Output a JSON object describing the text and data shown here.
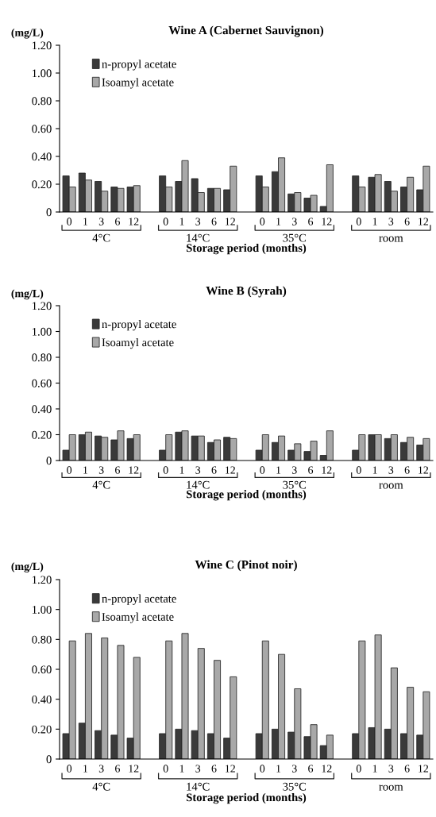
{
  "chart_data": [
    {
      "type": "bar",
      "title": "Wine A (Cabernet Sauvignon)",
      "ylabel": "(mg/L)",
      "xlabel": "Storage period (months)",
      "categories": [
        "0",
        "1",
        "3",
        "6",
        "12",
        null,
        "0",
        "1",
        "3",
        "6",
        "12",
        null,
        "0",
        "1",
        "3",
        "6",
        "12",
        null,
        "0",
        "1",
        "3",
        "6",
        "12"
      ],
      "series": [
        {
          "name": "n-propyl acetate",
          "color": "#3a3a3a",
          "values": [
            0.26,
            0.28,
            0.22,
            0.18,
            0.18,
            null,
            0.26,
            0.22,
            0.24,
            0.17,
            0.16,
            null,
            0.26,
            0.29,
            0.13,
            0.1,
            0.04,
            null,
            0.26,
            0.25,
            0.22,
            0.18,
            0.16
          ]
        },
        {
          "name": "Isoamyl acetate",
          "color": "#a8a8a8",
          "values": [
            0.18,
            0.23,
            0.15,
            0.17,
            0.19,
            null,
            0.18,
            0.37,
            0.14,
            0.17,
            0.33,
            null,
            0.18,
            0.39,
            0.14,
            0.12,
            0.34,
            null,
            0.18,
            0.27,
            0.15,
            0.25,
            0.33
          ]
        }
      ],
      "annotations": [
        "4°C",
        "14°C",
        "35°C",
        "room"
      ],
      "ylim": [
        0,
        1.2
      ],
      "yticks": [
        0,
        {
          "value": 0.2,
          "label": "0.20"
        },
        {
          "value": 0.4,
          "label": "0.40"
        },
        {
          "value": 0.6,
          "label": "0.60"
        },
        {
          "value": 0.8,
          "label": "0.80"
        },
        {
          "value": 1.0,
          "label": "1.00"
        },
        {
          "value": 1.2,
          "label": "1.20"
        }
      ],
      "legend": "top left",
      "grid": false
    },
    {
      "type": "bar",
      "title": "Wine B (Syrah)",
      "ylabel": "(mg/L)",
      "xlabel": "Storage period (months)",
      "categories": [
        "0",
        "1",
        "3",
        "6",
        "12",
        null,
        "0",
        "1",
        "3",
        "6",
        "12",
        null,
        "0",
        "1",
        "3",
        "6",
        "12",
        null,
        "0",
        "1",
        "3",
        "6",
        "12"
      ],
      "series": [
        {
          "name": "n-propyl acetate",
          "color": "#3a3a3a",
          "values": [
            0.08,
            0.2,
            0.19,
            0.16,
            0.17,
            null,
            0.08,
            0.22,
            0.19,
            0.14,
            0.18,
            null,
            0.08,
            0.14,
            0.08,
            0.07,
            0.04,
            null,
            0.08,
            0.2,
            0.17,
            0.14,
            0.12
          ]
        },
        {
          "name": "Isoamyl acetate",
          "color": "#a8a8a8",
          "values": [
            0.2,
            0.22,
            0.18,
            0.23,
            0.2,
            null,
            0.2,
            0.23,
            0.19,
            0.16,
            0.17,
            null,
            0.2,
            0.19,
            0.13,
            0.15,
            0.23,
            null,
            0.2,
            0.2,
            0.2,
            0.18,
            0.17
          ]
        }
      ],
      "annotations": [
        "4°C",
        "14°C",
        "35°C",
        "room"
      ],
      "ylim": [
        0,
        1.2
      ],
      "yticks": [
        0,
        {
          "value": 0.2,
          "label": "0.20"
        },
        {
          "value": 0.4,
          "label": "0.40"
        },
        {
          "value": 0.6,
          "label": "0.60"
        },
        {
          "value": 0.8,
          "label": "0.80"
        },
        {
          "value": 1.0,
          "label": "1.00"
        },
        {
          "value": 1.2,
          "label": "1.20"
        }
      ],
      "legend": "top left",
      "grid": false
    },
    {
      "type": "bar",
      "title": "Wine C (Pinot noir)",
      "ylabel": "(mg/L)",
      "xlabel": "Storage period (months)",
      "categories": [
        "0",
        "1",
        "3",
        "6",
        "12",
        null,
        "0",
        "1",
        "3",
        "6",
        "12",
        null,
        "0",
        "1",
        "3",
        "6",
        "12",
        null,
        "0",
        "1",
        "3",
        "6",
        "12"
      ],
      "series": [
        {
          "name": "n-propyl acetate",
          "color": "#3a3a3a",
          "values": [
            0.17,
            0.24,
            0.19,
            0.16,
            0.14,
            null,
            0.17,
            0.2,
            0.19,
            0.17,
            0.14,
            null,
            0.17,
            0.2,
            0.18,
            0.15,
            0.09,
            null,
            0.17,
            0.21,
            0.2,
            0.17,
            0.16
          ]
        },
        {
          "name": "Isoamyl acetate",
          "color": "#a8a8a8",
          "values": [
            0.79,
            0.84,
            0.81,
            0.76,
            0.68,
            null,
            0.79,
            0.84,
            0.74,
            0.66,
            0.55,
            null,
            0.79,
            0.7,
            0.47,
            0.23,
            0.16,
            null,
            0.79,
            0.83,
            0.61,
            0.48,
            0.45
          ]
        }
      ],
      "annotations": [
        "4°C",
        "14°C",
        "35°C",
        "room"
      ],
      "ylim": [
        0,
        1.2
      ],
      "yticks": [
        0,
        {
          "value": 0.2,
          "label": "0.20"
        },
        {
          "value": 0.4,
          "label": "0.40"
        },
        {
          "value": 0.6,
          "label": "0.60"
        },
        {
          "value": 0.8,
          "label": "0.80"
        },
        {
          "value": 1.0,
          "label": "1.00"
        },
        {
          "value": 1.2,
          "label": "1.20"
        }
      ],
      "legend": "top left",
      "grid": false
    }
  ]
}
